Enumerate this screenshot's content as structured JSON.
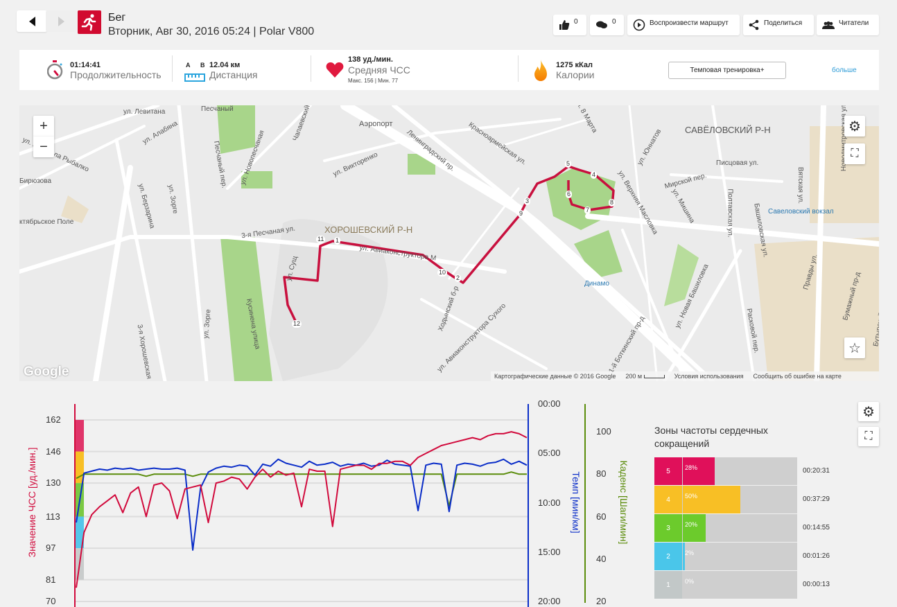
{
  "header": {
    "sport": "Бег",
    "subtitle": "Вторник, Авг 30, 2016 05:24 | Polar V800"
  },
  "toolbar": {
    "likes": "0",
    "comments": "0",
    "play_route": "Воспроизвести маршрут",
    "share": "Поделиться",
    "followers": "Читатели"
  },
  "summary": {
    "duration": {
      "value": "01:14:41",
      "label": "Продолжительность"
    },
    "distance": {
      "a": "A",
      "b": "B",
      "value": "12.04 км",
      "label": "Дистанция"
    },
    "heart_rate": {
      "value": "138 уд./мин.",
      "label": "Средняя ЧСС",
      "max": "Макс. 156",
      "min": "Мин. 77"
    },
    "calories": {
      "value": "1275 кКал",
      "label": "Калории"
    },
    "training_button": "Темповая тренировка+",
    "more": "больше"
  },
  "map": {
    "labels": [
      "ул. Левитана",
      "Песчаный",
      "ул. Алабяна",
      "ул. Маршала Рыбалко",
      "Бирюзова",
      "ктябрьское Поле",
      "ул. Берзарина",
      "ул. Зорге",
      "Песчаный пер.",
      "ул. Новопесчаная",
      "Чапаевский",
      "Аэропорт",
      "ул. Викторенко",
      "Ленинградский пр.",
      "Красноармейская ул.",
      "ул. 8 Марта",
      "САВЁЛОВСКИЙ Р-Н",
      "Новодмитровская ул.",
      "ул. Юннатов",
      "Мирской пер.",
      "Писцовая ул.",
      "Вятская ул.",
      "Савеловский вокзал",
      "ул. Верхняя Масловка",
      "ул. Мишина",
      "Полтавская ул.",
      "Башиловская ул.",
      "3-я Песчаная ул.",
      "ХОРОШЕВСКИЙ Р-Н",
      "ул. Авиаконструктора М",
      "Ходынский б-р",
      "ул. Авиаконструктора Сухого",
      "Динамо",
      "ул. Новая Башиловка",
      "Кусинена улица",
      "ул. Зорге",
      "3-я Хорошевская",
      "ул. Сущ",
      "Бумажный пр-д",
      "Правды ул.",
      "Расковой пер.",
      "1-й Боткинский пр-д",
      "Бутырский Вал ул."
    ],
    "markers": [
      "1",
      "2",
      "3",
      "4",
      "5",
      "6",
      "7",
      "8",
      "9",
      "10",
      "11",
      "12"
    ],
    "google": "Google",
    "attribution": "Картографические данные © 2016 Google",
    "scale": "200 м",
    "terms": "Условия использования",
    "report": "Сообщить об ошибке на карте",
    "zoom_in": "+",
    "zoom_out": "−"
  },
  "chart_data": {
    "type": "line",
    "x_label": "",
    "axes": {
      "hr": {
        "label": "Значение ЧСС [уд./мин.]",
        "ticks": [
          162,
          146,
          130,
          113,
          97,
          81,
          70
        ],
        "range": [
          70,
          170.5
        ],
        "color": "#d10a3c"
      },
      "pace": {
        "label": "Темп [мин/км]",
        "ticks": [
          "00:00",
          "05:00",
          "10:00",
          "15:00",
          "20:00"
        ],
        "range": [
          0,
          20
        ],
        "color": "#0a2dc8"
      },
      "cadence": {
        "label": "Каденс [Шаги/мин]",
        "ticks": [
          100,
          80,
          60,
          40,
          20
        ],
        "range": [
          20,
          100
        ],
        "color": "#5a8c0a"
      }
    },
    "hr_zone_bands": [
      {
        "from": 146,
        "to": 162,
        "color": "#e0356a"
      },
      {
        "from": 130,
        "to": 146,
        "color": "#f8bf25"
      },
      {
        "from": 113,
        "to": 130,
        "color": "#7ac943"
      },
      {
        "from": 97,
        "to": 113,
        "color": "#55c6ea"
      },
      {
        "from": 81,
        "to": 97,
        "color": "#c9cccc"
      }
    ],
    "series": [
      {
        "name": "ЧСС",
        "axis": "hr",
        "color": "#d10a3c",
        "values": [
          77,
          105,
          114,
          118,
          121,
          124,
          115,
          125,
          128,
          113,
          129,
          130,
          126,
          112,
          127,
          128,
          129,
          110,
          130,
          131,
          133,
          132,
          127,
          133,
          137,
          133,
          136,
          134,
          135,
          118,
          137,
          136,
          136,
          108,
          137,
          138,
          139,
          139,
          137,
          140,
          140,
          141,
          141,
          139,
          143,
          145,
          147,
          149,
          150,
          151,
          152,
          153,
          152,
          154,
          155,
          155,
          156,
          155,
          153
        ]
      },
      {
        "name": "Темп",
        "axis": "pace",
        "values": [
          12,
          7,
          6.8,
          6.6,
          6.7,
          6.5,
          6.6,
          6.5,
          6.7,
          6.6,
          6.5,
          6.6,
          6.6,
          6.5,
          6.7,
          14.8,
          8.5,
          6.9,
          6.5,
          6.3,
          6.4,
          6.2,
          6.3,
          7.2,
          6.1,
          6.3,
          5.6,
          6.0,
          6.2,
          6.4,
          5.8,
          6.2,
          6.1,
          5.9,
          6.3,
          6.1,
          6.2,
          6.0,
          6.3,
          6.2,
          5.7,
          6.1,
          6.2,
          6.3,
          10.8,
          6.2,
          6.0,
          6.1,
          10.9,
          6.2,
          6.0,
          6.1,
          6.3,
          6.0,
          5.9,
          5.6,
          6.1,
          5.8,
          6.2
        ],
        "color": "#0a2dc8"
      },
      {
        "name": "Каденс",
        "axis": "cadence",
        "color": "#5a8c0a",
        "values": [
          78,
          80,
          80,
          80,
          80,
          80,
          80,
          80,
          80,
          79,
          80,
          80,
          80,
          80,
          80,
          79,
          80,
          80,
          80,
          80,
          80,
          80,
          80,
          80,
          80,
          80,
          80,
          80,
          80,
          80,
          80,
          80,
          80,
          80,
          80,
          80,
          80,
          80,
          80,
          80,
          80,
          80,
          80,
          80,
          80,
          80,
          80,
          80,
          65,
          80,
          80,
          80,
          80,
          80,
          80,
          80,
          81,
          80,
          80
        ]
      }
    ]
  },
  "zones": {
    "title": "Зоны частоты сердечных сокращений",
    "rows": [
      {
        "zone": "5",
        "pct": "28%",
        "fraction": 0.28,
        "time": "00:20:31",
        "color": "#e0105a"
      },
      {
        "zone": "4",
        "pct": "50%",
        "fraction": 0.5,
        "time": "00:37:29",
        "color": "#f8bf25"
      },
      {
        "zone": "3",
        "pct": "20%",
        "fraction": 0.2,
        "time": "00:14:55",
        "color": "#6ccb2c"
      },
      {
        "zone": "2",
        "pct": "2%",
        "fraction": 0.02,
        "time": "00:01:26",
        "color": "#4ac6ea"
      },
      {
        "zone": "1",
        "pct": "0%",
        "fraction": 0.0,
        "time": "00:00:13",
        "color": "#c2c8c8"
      }
    ]
  }
}
